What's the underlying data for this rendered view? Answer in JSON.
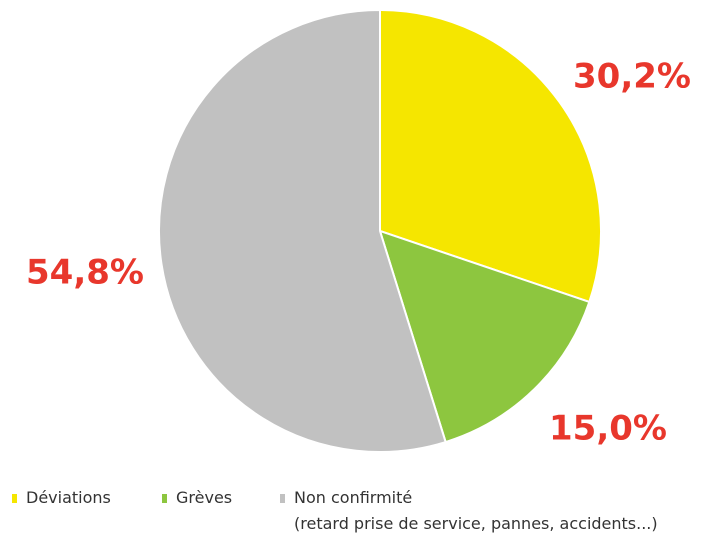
{
  "chart_data": {
    "type": "pie",
    "categories": [
      "Déviations",
      "Grèves",
      "Non confirmité"
    ],
    "values": [
      30.2,
      15.0,
      54.8
    ],
    "labels": [
      "30,2%",
      "15,0%",
      "54,8%"
    ],
    "colors": [
      "#f5e600",
      "#8dc63f",
      "#c1c1c1"
    ],
    "label_color": "#e8372c",
    "start": "12 o'clock",
    "direction": "clockwise",
    "legend_position": "bottom"
  },
  "legend": {
    "items": [
      {
        "label": "Déviations",
        "color": "#f5e600"
      },
      {
        "label": "Grèves",
        "color": "#8dc63f"
      },
      {
        "label": "Non confirmité",
        "color": "#c1c1c1",
        "sublabel": "(retard prise de service, pannes, accidents...)"
      }
    ]
  }
}
